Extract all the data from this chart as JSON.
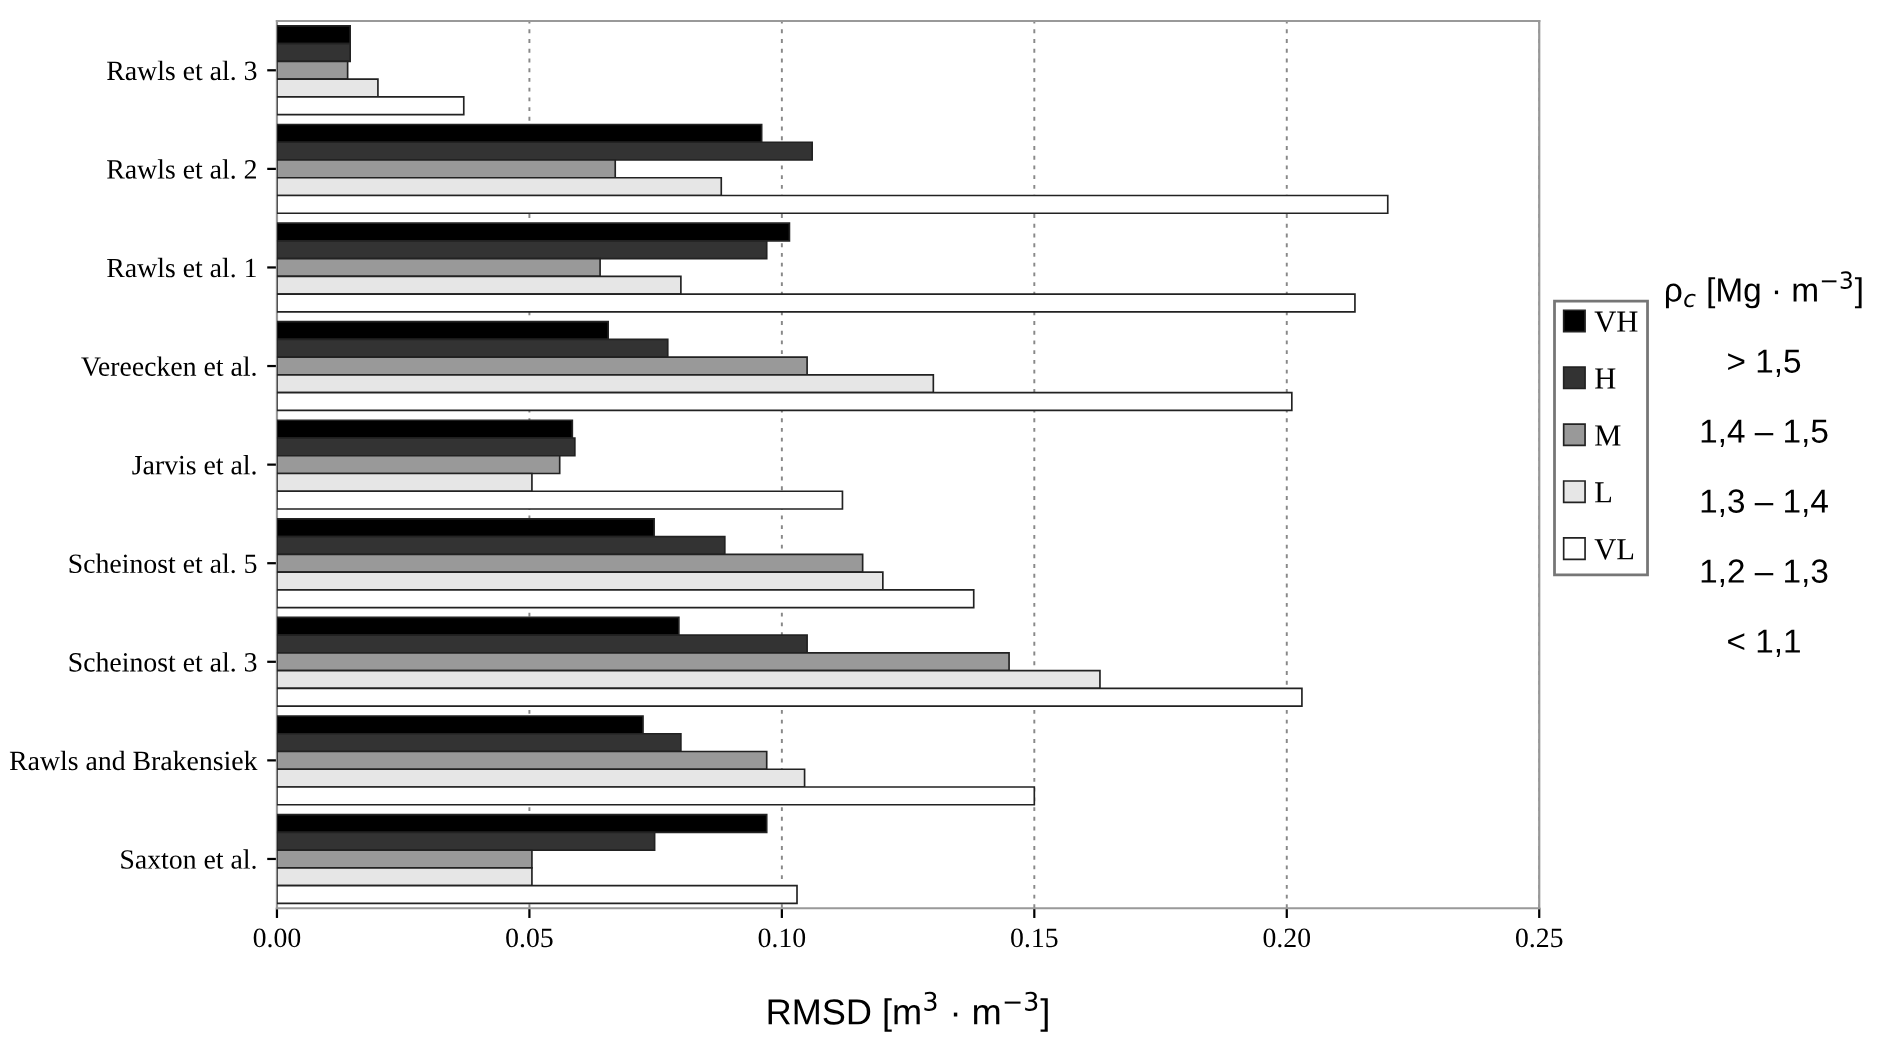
{
  "chart_data": {
    "type": "bar",
    "orientation": "horizontal",
    "xlabel": "RMSD [m$^{3}$ · m$^{−3}$]",
    "categories": [
      "Rawls et al. 3",
      "Rawls et al. 2",
      "Rawls et al. 1",
      "Vereecken et al.",
      "Jarvis et al.",
      "Scheinost et al. 5",
      "Scheinost et al. 3",
      "Rawls and Brakensiek",
      "Saxton et al."
    ],
    "series": [
      {
        "name": "VH",
        "color": "#000000",
        "values": [
          0.0145,
          0.096,
          0.1015,
          0.0656,
          0.0585,
          0.0747,
          0.0796,
          0.0725,
          0.097
        ]
      },
      {
        "name": "H",
        "color": "#333333",
        "values": [
          0.0145,
          0.106,
          0.097,
          0.0774,
          0.059,
          0.0887,
          0.105,
          0.08,
          0.0748
        ]
      },
      {
        "name": "M",
        "color": "#999999",
        "values": [
          0.014,
          0.067,
          0.064,
          0.105,
          0.056,
          0.116,
          0.145,
          0.097,
          0.0505
        ]
      },
      {
        "name": "L",
        "color": "#e6e6e6",
        "values": [
          0.02,
          0.088,
          0.08,
          0.13,
          0.0505,
          0.12,
          0.163,
          0.1045,
          0.0505
        ]
      },
      {
        "name": "VL",
        "color": "#ffffff",
        "values": [
          0.037,
          0.22,
          0.2135,
          0.201,
          0.112,
          0.138,
          0.203,
          0.15,
          0.103
        ]
      }
    ],
    "xlim": [
      0,
      0.25
    ],
    "xticks": [
      {
        "value": 0,
        "label": "0.00"
      },
      {
        "value": 0.05,
        "label": "0.05"
      },
      {
        "value": 0.1,
        "label": "0.10"
      },
      {
        "value": 0.15,
        "label": "0.15"
      },
      {
        "value": 0.2,
        "label": "0.20"
      },
      {
        "value": 0.25,
        "label": "0.25"
      }
    ],
    "grid": "x",
    "legend": "right",
    "annotations": [
      "ρ$_{c}$ [Mg · m$^{−3}$]",
      "> 1,5",
      "1,4 – 1,5",
      "1,3 – 1,4",
      "1,2 – 1,3",
      "< 1,1"
    ]
  }
}
